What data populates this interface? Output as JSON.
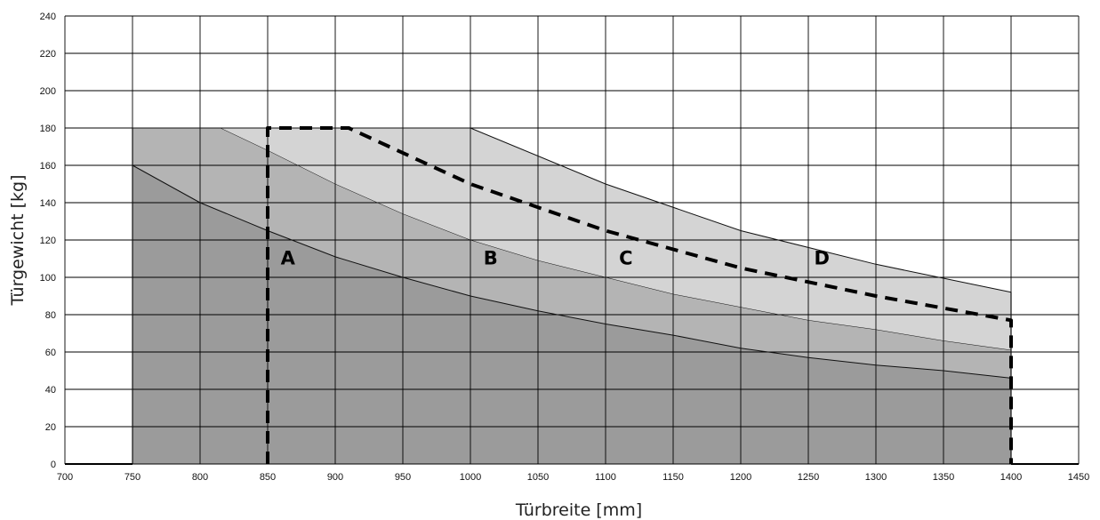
{
  "chart_data": {
    "type": "area",
    "xlabel": "Türbreite [mm]",
    "ylabel": "Türgewicht [kg]",
    "xlim": [
      700,
      1450
    ],
    "ylim": [
      0,
      240
    ],
    "x_ticks": [
      700,
      750,
      800,
      850,
      900,
      950,
      1000,
      1050,
      1100,
      1150,
      1200,
      1250,
      1300,
      1350,
      1400,
      1450
    ],
    "y_ticks": [
      0,
      20,
      40,
      60,
      80,
      100,
      120,
      140,
      160,
      180,
      200,
      220,
      240
    ],
    "grid": true,
    "regions": [
      {
        "label": "D",
        "label_at": [
          1260,
          107
        ],
        "color": "#d4d4d4",
        "boundary": [
          [
            750,
            180
          ],
          [
            1000,
            180
          ],
          [
            1100,
            150
          ],
          [
            1200,
            125
          ],
          [
            1300,
            107
          ],
          [
            1400,
            92
          ]
        ]
      },
      {
        "label": "C",
        "label_at": [
          1115,
          107
        ],
        "color": "#b4b4b4",
        "boundary": [
          [
            750,
            180
          ],
          [
            815,
            180
          ],
          [
            850,
            168
          ],
          [
            900,
            150
          ],
          [
            950,
            134
          ],
          [
            1000,
            120
          ],
          [
            1050,
            109
          ],
          [
            1100,
            100
          ],
          [
            1150,
            91
          ],
          [
            1200,
            84
          ],
          [
            1250,
            77
          ],
          [
            1300,
            72
          ],
          [
            1350,
            66
          ],
          [
            1400,
            61
          ]
        ]
      },
      {
        "label": "B",
        "label_at": [
          1015,
          107
        ],
        "color": "#9b9b9b",
        "boundary": [
          [
            750,
            160
          ],
          [
            800,
            140
          ],
          [
            850,
            125
          ],
          [
            900,
            111
          ],
          [
            950,
            100
          ],
          [
            1000,
            90
          ],
          [
            1050,
            82
          ],
          [
            1100,
            75
          ],
          [
            1150,
            69
          ],
          [
            1200,
            62
          ],
          [
            1250,
            57
          ],
          [
            1300,
            53
          ],
          [
            1350,
            50
          ],
          [
            1400,
            46
          ]
        ]
      },
      {
        "label": "A",
        "label_at": [
          865,
          107
        ],
        "color": "#7a7a7f",
        "boundary": [
          [
            750,
            0
          ],
          [
            1400,
            0
          ]
        ]
      }
    ],
    "dashed_boundary": [
      [
        850,
        0
      ],
      [
        850,
        180
      ],
      [
        910,
        180
      ],
      [
        1000,
        150
      ],
      [
        1100,
        125
      ],
      [
        1200,
        105
      ],
      [
        1300,
        90
      ],
      [
        1400,
        77
      ],
      [
        1400,
        0
      ]
    ],
    "baseline_segments": [
      [
        700,
        750
      ],
      [
        1400,
        1450
      ]
    ]
  }
}
